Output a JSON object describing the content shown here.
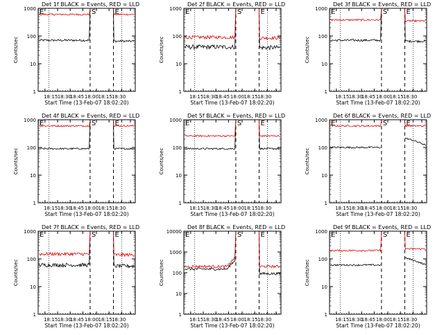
{
  "start_time_label": "Start Time (13-Feb-07 18:02:20)",
  "ylabel": "Counts/sec",
  "marker_labels": {
    "start": "S",
    "end": "E",
    "edge": "E"
  },
  "colors": {
    "events": "#000000",
    "lld": "#e00000"
  },
  "chart_data": [
    {
      "type": "line",
      "title": "Det 1f BLACK = Events, RED = LLD",
      "log_y": true,
      "ylim": [
        1,
        1000
      ],
      "yticks": [
        "1",
        "10",
        "100",
        "1000"
      ],
      "xticks": [
        "18:15",
        "18:30",
        "18:45",
        "18:00",
        "18:15",
        "18:30"
      ],
      "series": [
        {
          "name": "Events",
          "color": "black",
          "level": 70,
          "after": 65,
          "noise": 0.04
        },
        {
          "name": "LLD",
          "color": "red",
          "level": 600,
          "after": 600,
          "noise": 0.03
        }
      ],
      "gap": "saturated"
    },
    {
      "type": "line",
      "title": "Det 2f BLACK = Events, RED = LLD",
      "log_y": true,
      "ylim": [
        1,
        1000
      ],
      "yticks": [
        "1",
        "10",
        "100",
        "1000"
      ],
      "xticks": [
        "18:15",
        "18:30",
        "18:45",
        "18:00",
        "18:15",
        "18:30"
      ],
      "series": [
        {
          "name": "Events",
          "color": "black",
          "level": 40,
          "after": 38,
          "noise": 0.08
        },
        {
          "name": "LLD",
          "color": "red",
          "level": 90,
          "after": 85,
          "noise": 0.06
        }
      ],
      "gap": "saturated"
    },
    {
      "type": "line",
      "title": "Det 3f BLACK = Events, RED = LLD",
      "log_y": true,
      "ylim": [
        1,
        1000
      ],
      "yticks": [
        "1",
        "10",
        "100",
        "1000"
      ],
      "xticks": [
        "18:15",
        "18:30",
        "18:45",
        "18:00",
        "18:15",
        "18:30"
      ],
      "series": [
        {
          "name": "Events",
          "color": "black",
          "level": 70,
          "after": 65,
          "noise": 0.04
        },
        {
          "name": "LLD",
          "color": "red",
          "level": 380,
          "after": 350,
          "noise": 0.03
        }
      ],
      "gap": "saturated"
    },
    {
      "type": "line",
      "title": "Det 4f BLACK = Events, RED = LLD",
      "log_y": true,
      "ylim": [
        1,
        1000
      ],
      "yticks": [
        "1",
        "10",
        "100",
        "1000"
      ],
      "xticks": [
        "18:15",
        "18:30",
        "18:45",
        "18:00",
        "18:15",
        "18:30"
      ],
      "series": [
        {
          "name": "Events",
          "color": "black",
          "level": 90,
          "after": 90,
          "noise": 0.03
        },
        {
          "name": "LLD",
          "color": "red",
          "level": 600,
          "after": 600,
          "noise": 0.03
        }
      ],
      "gap": "saturated"
    },
    {
      "type": "line",
      "title": "Det 5f BLACK = Events, RED = LLD",
      "log_y": true,
      "ylim": [
        1,
        1000
      ],
      "yticks": [
        "1",
        "10",
        "100",
        "1000"
      ],
      "xticks": [
        "18:15",
        "18:30",
        "18:45",
        "18:00",
        "18:15",
        "18:30"
      ],
      "series": [
        {
          "name": "Events",
          "color": "black",
          "level": 90,
          "after": 90,
          "noise": 0.03
        },
        {
          "name": "LLD",
          "color": "red",
          "level": 260,
          "after": 260,
          "noise": 0.03
        }
      ],
      "gap": "saturated"
    },
    {
      "type": "line",
      "title": "Det 6f BLACK = Events, RED = LLD",
      "log_y": true,
      "ylim": [
        1,
        1000
      ],
      "yticks": [
        "1",
        "10",
        "100",
        "1000"
      ],
      "xticks": [
        "18:15",
        "18:30",
        "18:45",
        "18:00",
        "18:15",
        "18:30"
      ],
      "series": [
        {
          "name": "Events",
          "color": "black",
          "level": 100,
          "after": 120,
          "noise": 0.03
        },
        {
          "name": "LLD",
          "color": "red",
          "level": 600,
          "after": 600,
          "noise": 0.03
        }
      ],
      "gap": "decay"
    },
    {
      "type": "line",
      "title": "Det 7f BLACK = Events, RED = LLD",
      "log_y": true,
      "ylim": [
        1,
        1000
      ],
      "yticks": [
        "1",
        "10",
        "100",
        "1000"
      ],
      "xticks": [
        "18:15",
        "18:30",
        "18:45",
        "18:00",
        "18:15",
        "18:30"
      ],
      "series": [
        {
          "name": "Events",
          "color": "black",
          "level": 60,
          "after": 55,
          "noise": 0.07
        },
        {
          "name": "LLD",
          "color": "red",
          "level": 150,
          "after": 140,
          "noise": 0.06
        }
      ],
      "gap": "saturated"
    },
    {
      "type": "line",
      "title": "Det 8f BLACK = Events, RED = LLD",
      "log_y": true,
      "ylim": [
        1,
        10000
      ],
      "yticks": [
        "1",
        "10",
        "100",
        "1000",
        "10000"
      ],
      "xticks": [
        "18:15",
        "18:30",
        "18:45",
        "18:00",
        "18:15",
        "18:30"
      ],
      "series": [
        {
          "name": "Events",
          "color": "black",
          "level": 150,
          "after": 90,
          "noise": 0.06
        },
        {
          "name": "LLD",
          "color": "red",
          "level": 200,
          "after": 200,
          "noise": 0.06
        }
      ],
      "gap": "saturated"
    },
    {
      "type": "line",
      "title": "Det 9f BLACK = Events, RED = LLD",
      "log_y": true,
      "ylim": [
        1,
        1000
      ],
      "yticks": [
        "1",
        "10",
        "100",
        "1000"
      ],
      "xticks": [
        "18:15",
        "18:30",
        "18:45",
        "18:00",
        "18:15",
        "18:30"
      ],
      "series": [
        {
          "name": "Events",
          "color": "black",
          "level": 60,
          "after": 60,
          "noise": 0.03
        },
        {
          "name": "LLD",
          "color": "red",
          "level": 200,
          "after": 230,
          "noise": 0.03
        }
      ],
      "gap": "decay"
    }
  ]
}
